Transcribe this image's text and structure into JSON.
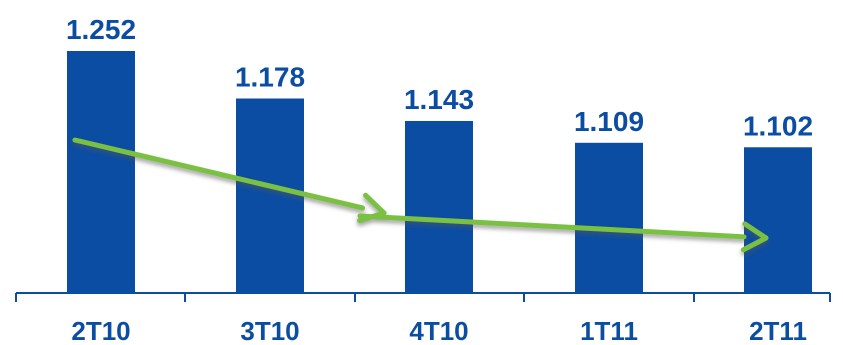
{
  "chart_data": {
    "type": "bar",
    "categories": [
      "2T10",
      "3T10",
      "4T10",
      "1T11",
      "2T11"
    ],
    "values": [
      1252,
      1178,
      1143,
      1109,
      1102
    ],
    "value_labels": [
      "1.252",
      "1.178",
      "1.143",
      "1.109",
      "1.102"
    ],
    "title": "",
    "xlabel": "",
    "ylabel": "",
    "ylim": [
      875,
      1252
    ],
    "grid": false,
    "legend": "none",
    "annotation": "trend-arrow",
    "colors": {
      "bar": "#0B4DA2",
      "label": "#0B4DA2",
      "trend": "#7AC143",
      "axis": "#0B4DA2"
    }
  }
}
